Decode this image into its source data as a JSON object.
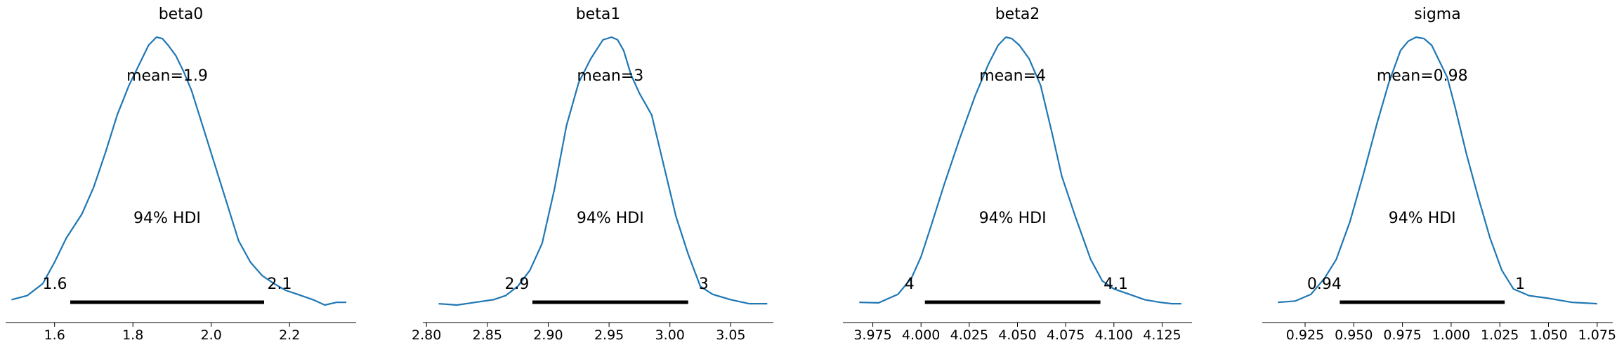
{
  "figure": {
    "background": "#ffffff"
  },
  "chart_data": [
    {
      "type": "area",
      "title": "beta0",
      "xlabel": "",
      "ylabel": "",
      "xlim": [
        1.475,
        2.37
      ],
      "ticks": [
        1.6,
        1.8,
        2.0,
        2.2
      ],
      "tick_labels": [
        "1.6",
        "1.8",
        "2.0",
        "2.2"
      ],
      "mean_label": "mean=1.9",
      "hdi_label": "94% HDI",
      "hdi_low": 1.64,
      "hdi_high": 2.135,
      "hdi_low_label": "1.6",
      "hdi_high_label": "2.1",
      "density": {
        "x": [
          1.49,
          1.53,
          1.57,
          1.6,
          1.63,
          1.67,
          1.7,
          1.73,
          1.76,
          1.79,
          1.82,
          1.84,
          1.86,
          1.875,
          1.89,
          1.91,
          1.93,
          1.95,
          1.98,
          2.01,
          2.04,
          2.07,
          2.1,
          2.13,
          2.16,
          2.19,
          2.22,
          2.26,
          2.29,
          2.32,
          2.345
        ],
        "y": [
          0.02,
          0.035,
          0.08,
          0.16,
          0.25,
          0.34,
          0.44,
          0.57,
          0.71,
          0.82,
          0.91,
          0.97,
          1.0,
          0.995,
          0.97,
          0.93,
          0.87,
          0.8,
          0.66,
          0.52,
          0.38,
          0.24,
          0.16,
          0.11,
          0.08,
          0.055,
          0.04,
          0.02,
          0.0,
          0.01,
          0.01
        ]
      },
      "line_color": "#1f77b4",
      "hdi_color": "#000000"
    },
    {
      "type": "area",
      "title": "beta1",
      "xlabel": "",
      "ylabel": "",
      "xlim": [
        2.797,
        3.085
      ],
      "ticks": [
        2.8,
        2.85,
        2.9,
        2.95,
        3.0,
        3.05
      ],
      "tick_labels": [
        "2.80",
        "2.85",
        "2.90",
        "2.95",
        "3.00",
        "3.05"
      ],
      "mean_label": "mean=3",
      "hdi_label": "94% HDI",
      "hdi_low": 2.887,
      "hdi_high": 3.015,
      "hdi_low_label": "2.9",
      "hdi_high_label": "3",
      "density": {
        "x": [
          2.81,
          2.825,
          2.84,
          2.855,
          2.865,
          2.875,
          2.885,
          2.895,
          2.905,
          2.915,
          2.925,
          2.935,
          2.945,
          2.952,
          2.957,
          2.962,
          2.968,
          2.975,
          2.985,
          2.995,
          3.005,
          3.015,
          3.025,
          3.035,
          3.05,
          3.065,
          3.08
        ],
        "y": [
          0.005,
          0.0,
          0.01,
          0.02,
          0.035,
          0.07,
          0.13,
          0.23,
          0.43,
          0.67,
          0.83,
          0.92,
          0.99,
          1.0,
          0.99,
          0.95,
          0.86,
          0.79,
          0.71,
          0.52,
          0.33,
          0.19,
          0.07,
          0.04,
          0.02,
          0.005,
          0.005
        ]
      },
      "line_color": "#1f77b4",
      "hdi_color": "#000000"
    },
    {
      "type": "area",
      "title": "beta2",
      "xlabel": "",
      "ylabel": "",
      "xlim": [
        3.9595,
        4.1405
      ],
      "ticks": [
        3.975,
        4.0,
        4.025,
        4.05,
        4.075,
        4.1,
        4.125
      ],
      "tick_labels": [
        "3.975",
        "4.000",
        "4.025",
        "4.050",
        "4.075",
        "4.100",
        "4.125"
      ],
      "mean_label": "mean=4",
      "hdi_label": "94% HDI",
      "hdi_low": 4.002,
      "hdi_high": 4.093,
      "hdi_low_label": "4",
      "hdi_high_label": "4.1",
      "density": {
        "x": [
          3.968,
          3.978,
          3.988,
          3.995,
          4.0,
          4.005,
          4.012,
          4.02,
          4.028,
          4.035,
          4.04,
          4.044,
          4.047,
          4.051,
          4.056,
          4.062,
          4.068,
          4.073,
          4.08,
          4.088,
          4.094,
          4.1,
          4.108,
          4.116,
          4.124,
          4.13,
          4.135
        ],
        "y": [
          0.01,
          0.008,
          0.04,
          0.1,
          0.18,
          0.29,
          0.45,
          0.62,
          0.78,
          0.9,
          0.97,
          1.0,
          0.995,
          0.97,
          0.92,
          0.82,
          0.64,
          0.48,
          0.33,
          0.17,
          0.09,
          0.06,
          0.04,
          0.02,
          0.01,
          0.005,
          0.005
        ]
      },
      "line_color": "#1f77b4",
      "hdi_color": "#000000"
    },
    {
      "type": "area",
      "title": "sigma",
      "xlabel": "",
      "ylabel": "",
      "xlim": [
        0.903,
        1.083
      ],
      "ticks": [
        0.925,
        0.95,
        0.975,
        1.0,
        1.025,
        1.05,
        1.075
      ],
      "tick_labels": [
        "0.925",
        "0.950",
        "0.975",
        "1.000",
        "1.025",
        "1.050",
        "1.075"
      ],
      "mean_label": "mean=0.98",
      "hdi_label": "94% HDI",
      "hdi_low": 0.9428,
      "hdi_high": 1.0275,
      "hdi_low_label": "0.94",
      "hdi_high_label": "1",
      "density": {
        "x": [
          0.911,
          0.92,
          0.928,
          0.935,
          0.941,
          0.948,
          0.955,
          0.962,
          0.968,
          0.974,
          0.978,
          0.982,
          0.986,
          0.99,
          0.994,
          0.998,
          1.002,
          1.008,
          1.014,
          1.02,
          1.026,
          1.032,
          1.04,
          1.05,
          1.062,
          1.075
        ],
        "y": [
          0.01,
          0.015,
          0.04,
          0.1,
          0.17,
          0.31,
          0.49,
          0.68,
          0.83,
          0.95,
          0.985,
          1.0,
          0.995,
          0.97,
          0.91,
          0.85,
          0.74,
          0.56,
          0.4,
          0.25,
          0.13,
          0.06,
          0.035,
          0.025,
          0.01,
          0.005
        ]
      },
      "line_color": "#1f77b4",
      "hdi_color": "#000000"
    }
  ]
}
